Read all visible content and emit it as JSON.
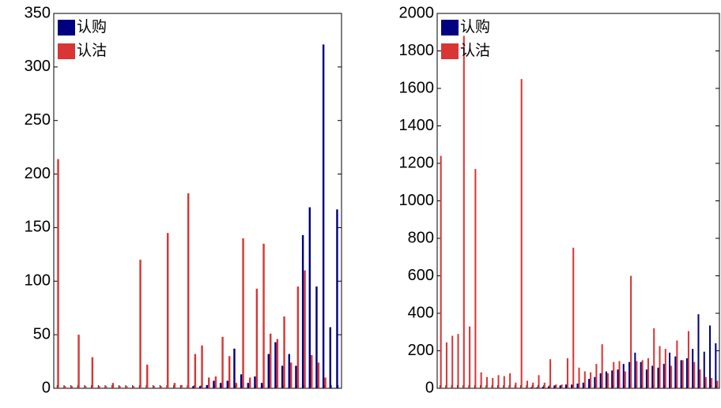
{
  "chart_data": [
    {
      "type": "bar",
      "categories": [
        null,
        null,
        null,
        null,
        null,
        null,
        null,
        null,
        null,
        null,
        null,
        null,
        null,
        null,
        null,
        null,
        null,
        null,
        null,
        null,
        null,
        null,
        null,
        null,
        null,
        null,
        null,
        null,
        null,
        null,
        null,
        null,
        null,
        null,
        null,
        null,
        null,
        null,
        null,
        null,
        null,
        null
      ],
      "series": [
        {
          "name": "认购",
          "color": "#000080",
          "values": [
            0,
            0,
            0,
            0,
            0,
            0,
            0,
            0,
            0,
            0,
            0,
            0,
            0,
            0,
            0,
            0,
            0,
            0,
            0,
            0,
            2,
            2,
            3,
            7,
            5,
            7,
            37,
            13,
            5,
            11,
            5,
            32,
            43,
            21,
            32,
            21,
            143,
            169,
            95,
            321,
            57,
            167
          ]
        },
        {
          "name": "认沽",
          "color": "#d93535",
          "values": [
            214,
            2,
            2,
            50,
            2,
            29,
            2,
            2,
            5,
            2,
            2,
            2,
            120,
            22,
            2,
            2,
            145,
            5,
            3,
            182,
            32,
            40,
            10,
            11,
            48,
            30,
            5,
            140,
            10,
            93,
            135,
            51,
            46,
            67,
            24,
            95,
            110,
            31,
            24,
            10,
            0,
            0
          ]
        }
      ],
      "ylim": [
        0,
        350
      ],
      "yticks": [
        0,
        50,
        100,
        150,
        200,
        250,
        300,
        350
      ],
      "legend": "upper left"
    },
    {
      "type": "bar",
      "categories": [
        null,
        null,
        null,
        null,
        null,
        null,
        null,
        null,
        null,
        null,
        null,
        null,
        null,
        null,
        null,
        null,
        null,
        null,
        null,
        null,
        null,
        null,
        null,
        null,
        null,
        null,
        null,
        null,
        null,
        null,
        null,
        null,
        null,
        null,
        null,
        null,
        null,
        null,
        null,
        null,
        null,
        null,
        null,
        null,
        null,
        null,
        null,
        null,
        null
      ],
      "series": [
        {
          "name": "认购",
          "color": "#000080",
          "values": [
            0,
            0,
            0,
            0,
            0,
            0,
            0,
            0,
            0,
            0,
            0,
            0,
            0,
            0,
            0,
            0,
            5,
            5,
            8,
            10,
            15,
            15,
            20,
            20,
            25,
            30,
            50,
            60,
            80,
            90,
            95,
            100,
            130,
            140,
            190,
            140,
            100,
            120,
            110,
            130,
            190,
            170,
            150,
            160,
            210,
            395,
            195,
            335,
            240
          ]
        },
        {
          "name": "认沽",
          "color": "#d93535",
          "values": [
            1240,
            245,
            280,
            290,
            1880,
            330,
            1170,
            85,
            60,
            55,
            70,
            65,
            80,
            30,
            1650,
            40,
            30,
            70,
            30,
            155,
            20,
            20,
            160,
            750,
            110,
            90,
            85,
            130,
            235,
            80,
            140,
            145,
            90,
            600,
            145,
            150,
            160,
            320,
            225,
            210,
            120,
            255,
            150,
            305,
            140,
            100,
            60,
            55,
            40
          ]
        }
      ],
      "ylim": [
        0,
        2000
      ],
      "yticks": [
        0,
        200,
        400,
        600,
        800,
        1000,
        1200,
        1400,
        1600,
        1800,
        2000
      ],
      "legend": "upper left"
    }
  ]
}
